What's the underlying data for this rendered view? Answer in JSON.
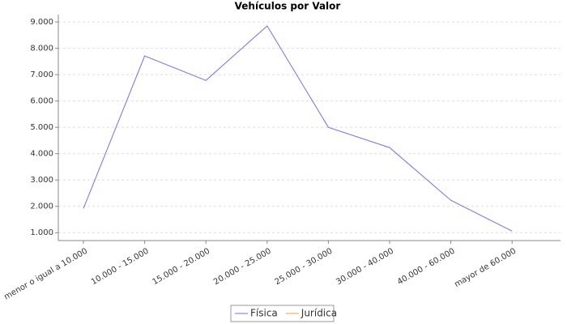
{
  "chart_data": {
    "type": "line",
    "title": "Vehículos por Valor",
    "categories": [
      "menor o igual a 10.000",
      "10.000 - 15.000",
      "15.000 - 20.000",
      "20.000 - 25.000",
      "25.000 - 30.000",
      "30.000 - 40.000",
      "40.000 - 60.000",
      "mayor de 60.000"
    ],
    "series": [
      {
        "name": "Física",
        "color": "#6f6fff",
        "values": [
          1920,
          7710,
          6780,
          8850,
          5000,
          4230,
          2230,
          1060
        ]
      },
      {
        "name": "Jurídica",
        "color": "#f0a030",
        "values": [
          null,
          null,
          null,
          null,
          null,
          null,
          null,
          null
        ]
      }
    ],
    "ylim": [
      700,
      9280
    ],
    "yticks": [
      {
        "value": 1000,
        "label": "1.000"
      },
      {
        "value": 2000,
        "label": "2.000"
      },
      {
        "value": 3000,
        "label": "3.000"
      },
      {
        "value": 4000,
        "label": "4.000"
      },
      {
        "value": 5000,
        "label": "5.000"
      },
      {
        "value": 6000,
        "label": "6.000"
      },
      {
        "value": 7000,
        "label": "7.000"
      },
      {
        "value": 8000,
        "label": "8.000"
      },
      {
        "value": 9000,
        "label": "9.000"
      }
    ],
    "grid": true
  }
}
